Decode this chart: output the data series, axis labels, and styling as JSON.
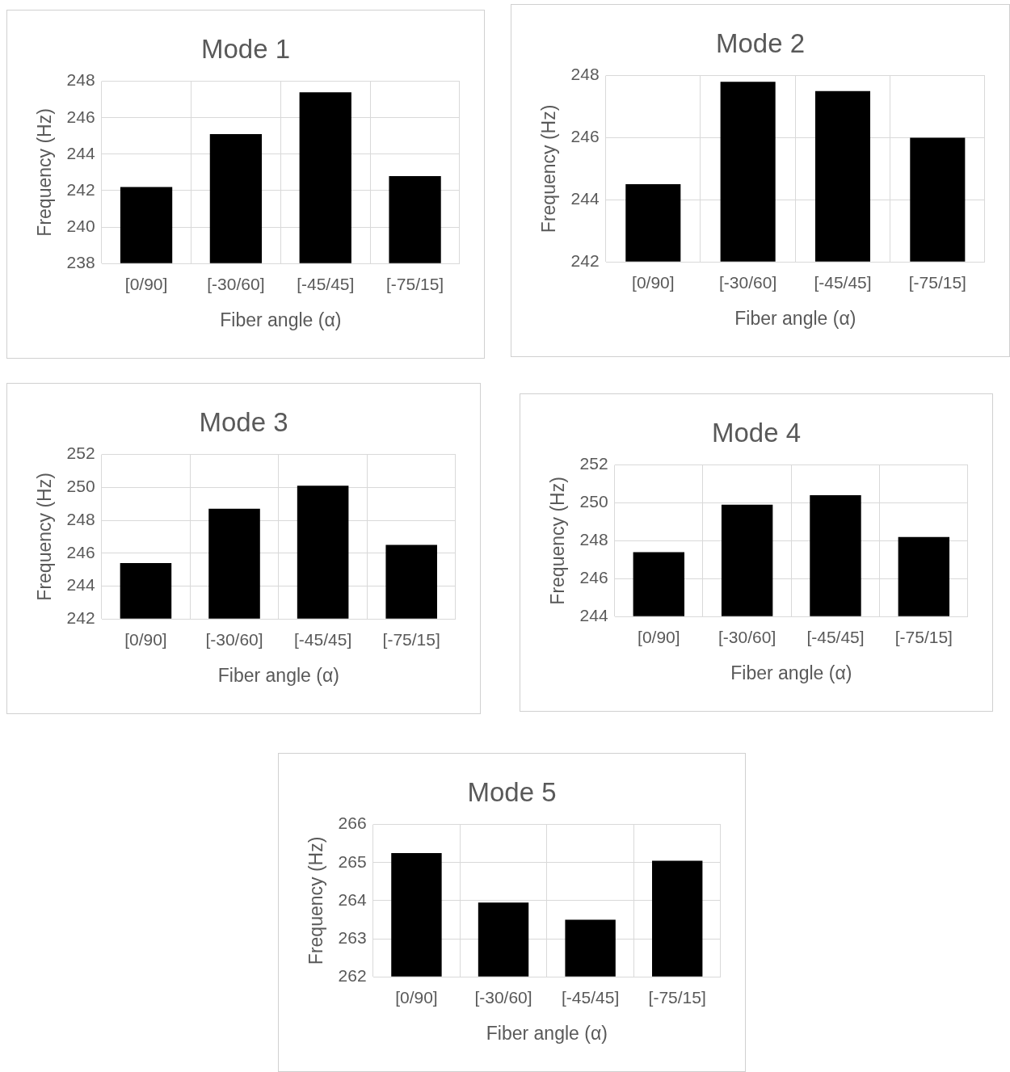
{
  "chart_data": [
    {
      "type": "bar",
      "title": "Mode 1",
      "xlabel": "Fiber angle (α)",
      "ylabel": "Frequency (Hz)",
      "categories": [
        "[0/90]",
        "[-30/60]",
        "[-45/45]",
        "[-75/15]"
      ],
      "values": [
        242.2,
        245.1,
        247.4,
        242.8
      ],
      "color": "#000000",
      "ylim": [
        238,
        248
      ],
      "yticks": [
        238,
        240,
        242,
        244,
        246,
        248
      ],
      "grid": true
    },
    {
      "type": "bar",
      "title": "Mode 2",
      "xlabel": "Fiber angle (α)",
      "ylabel": "Frequency (Hz)",
      "categories": [
        "[0/90]",
        "[-30/60]",
        "[-45/45]",
        "[-75/15]"
      ],
      "values": [
        244.5,
        247.8,
        247.5,
        246.0
      ],
      "color": "#000000",
      "ylim": [
        242,
        248
      ],
      "yticks": [
        242,
        244,
        246,
        248
      ],
      "grid": true
    },
    {
      "type": "bar",
      "title": "Mode 3",
      "xlabel": "Fiber angle (α)",
      "ylabel": "Frequency (Hz)",
      "categories": [
        "[0/90]",
        "[-30/60]",
        "[-45/45]",
        "[-75/15]"
      ],
      "values": [
        245.4,
        248.7,
        250.1,
        246.5
      ],
      "color": "#000000",
      "ylim": [
        242,
        252
      ],
      "yticks": [
        242,
        244,
        246,
        248,
        250,
        252
      ],
      "grid": true
    },
    {
      "type": "bar",
      "title": "Mode 4",
      "xlabel": "Fiber angle (α)",
      "ylabel": "Frequency (Hz)",
      "categories": [
        "[0/90]",
        "[-30/60]",
        "[-45/45]",
        "[-75/15]"
      ],
      "values": [
        247.4,
        249.9,
        250.4,
        248.2
      ],
      "color": "#000000",
      "ylim": [
        244,
        252
      ],
      "yticks": [
        244,
        246,
        248,
        250,
        252
      ],
      "grid": true
    },
    {
      "type": "bar",
      "title": "Mode 5",
      "xlabel": "Fiber angle (α)",
      "ylabel": "Frequency (Hz)",
      "categories": [
        "[0/90]",
        "[-30/60]",
        "[-45/45]",
        "[-75/15]"
      ],
      "values": [
        265.25,
        263.95,
        263.5,
        265.05
      ],
      "color": "#000000",
      "ylim": [
        262,
        266
      ],
      "yticks": [
        262,
        263,
        264,
        265,
        266
      ],
      "grid": true
    }
  ]
}
